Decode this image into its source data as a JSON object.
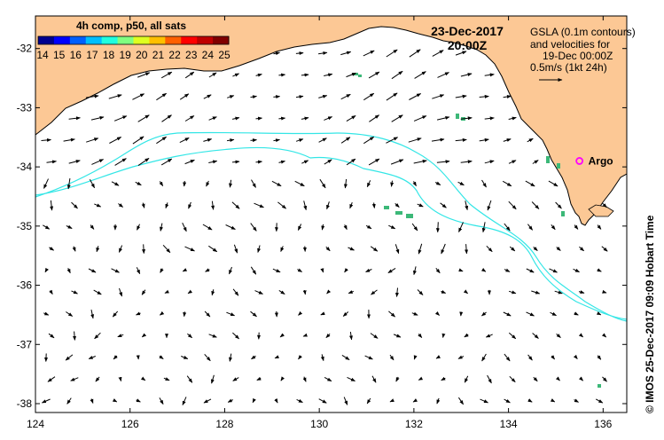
{
  "colorbar": {
    "title": "4h comp, p50, all sats",
    "labels": [
      "14",
      "15",
      "16",
      "17",
      "18",
      "19",
      "20",
      "21",
      "22",
      "23",
      "24",
      "25"
    ],
    "colors": [
      "#00008f",
      "#0000ff",
      "#0060ff",
      "#00bfff",
      "#20ffdf",
      "#80ff80",
      "#dfff20",
      "#ffbf00",
      "#ff6000",
      "#ff0000",
      "#bf0000",
      "#800000"
    ]
  },
  "date_title": {
    "line1": "23-Dec-2017",
    "line2": "20:00Z"
  },
  "legend": {
    "lines": [
      "GSLA (0.1m contours)",
      "and velocities for",
      "19-Dec 00:00Z",
      "0.5m/s (1kt 24h)"
    ]
  },
  "argo": {
    "label": "Argo",
    "lon": 135.5,
    "lat": -33.9,
    "color": "#ff00ff"
  },
  "x_axis": {
    "ticks": [
      124,
      126,
      128,
      130,
      132,
      134,
      136
    ],
    "labels": [
      "124",
      "126",
      "128",
      "130",
      "132",
      "134",
      "136"
    ],
    "range": [
      124,
      136.5
    ]
  },
  "y_axis": {
    "ticks": [
      -32,
      -33,
      -34,
      -35,
      -36,
      -37,
      -38
    ],
    "labels": [
      "-32",
      "-33",
      "-34",
      "-35",
      "-36",
      "-37",
      "-38"
    ],
    "range": [
      -38.15,
      -31.45
    ]
  },
  "credit": "© IMOS 25-Dec-2017 09:09 Hobart Time",
  "colors": {
    "land": "#fcc895",
    "contour": "#33e6e6",
    "arrow": "#000000",
    "sst_patch": "#3cb878"
  }
}
